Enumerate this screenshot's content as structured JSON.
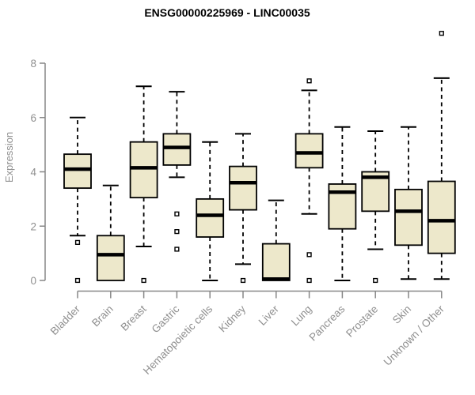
{
  "chart_data": {
    "type": "boxplot",
    "title": "ENSG00000225969 - LINC00035",
    "ylabel": "Expression",
    "xlabel": "",
    "ylim": [
      0,
      8
    ],
    "yticks": [
      0,
      2,
      4,
      6,
      8
    ],
    "grid": "off",
    "legend": "none",
    "categories": [
      "Bladder",
      "Brain",
      "Breast",
      "Gastric",
      "Hematopoietic cells",
      "Kidney",
      "Liver",
      "Lung",
      "Pancreas",
      "Prostate",
      "Skin",
      "Unknown / Other"
    ],
    "series": [
      {
        "category": "Bladder",
        "min": 1.65,
        "q1": 3.4,
        "median": 4.1,
        "q3": 4.65,
        "max": 6.0,
        "outliers": [
          1.4,
          0
        ]
      },
      {
        "category": "Brain",
        "min": 0,
        "q1": 0,
        "median": 0.95,
        "q3": 1.65,
        "max": 3.5,
        "outliers": []
      },
      {
        "category": "Breast",
        "min": 1.25,
        "q1": 3.05,
        "median": 4.15,
        "q3": 5.1,
        "max": 7.15,
        "outliers": [
          0
        ]
      },
      {
        "category": "Gastric",
        "min": 3.8,
        "q1": 4.25,
        "median": 4.9,
        "q3": 5.4,
        "max": 6.95,
        "outliers": [
          2.45,
          1.8,
          1.15
        ]
      },
      {
        "category": "Hematopoietic cells",
        "min": 0,
        "q1": 1.6,
        "median": 2.4,
        "q3": 3.0,
        "max": 5.1,
        "outliers": []
      },
      {
        "category": "Kidney",
        "min": 0.6,
        "q1": 2.6,
        "median": 3.6,
        "q3": 4.2,
        "max": 5.4,
        "outliers": [
          0
        ]
      },
      {
        "category": "Liver",
        "min": 0,
        "q1": 0,
        "median": 0.05,
        "q3": 1.35,
        "max": 2.95,
        "outliers": []
      },
      {
        "category": "Lung",
        "min": 2.45,
        "q1": 4.15,
        "median": 4.7,
        "q3": 5.4,
        "max": 7.0,
        "outliers": [
          7.35,
          0.95,
          0
        ]
      },
      {
        "category": "Pancreas",
        "min": 0,
        "q1": 1.9,
        "median": 3.25,
        "q3": 3.55,
        "max": 5.65,
        "outliers": []
      },
      {
        "category": "Prostate",
        "min": 1.15,
        "q1": 2.55,
        "median": 3.8,
        "q3": 4.0,
        "max": 5.5,
        "outliers": [
          0
        ]
      },
      {
        "category": "Skin",
        "min": 0.05,
        "q1": 1.3,
        "median": 2.55,
        "q3": 3.35,
        "max": 5.65,
        "outliers": []
      },
      {
        "category": "Unknown / Other",
        "min": 0.05,
        "q1": 1.0,
        "median": 2.2,
        "q3": 3.65,
        "max": 7.45,
        "outliers": [
          9.1
        ]
      }
    ],
    "colors": {
      "box_fill": "#EDE8CB",
      "box_border": "#000000",
      "median": "#000000",
      "outlier_fill": "#FFFFFF",
      "axis": "#878787",
      "title": "#000000",
      "background": "#FFFFFF"
    }
  }
}
